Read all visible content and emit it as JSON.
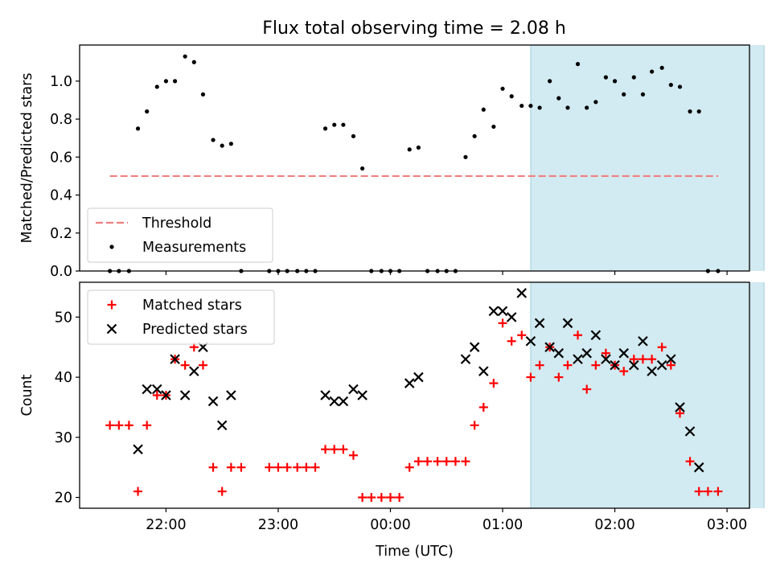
{
  "title": "Flux total observing time = 2.08 h",
  "chart_data": [
    {
      "type": "scatter",
      "panel": "top",
      "ylabel": "Matched/Predicted stars",
      "xlabel": "",
      "x_unit": "hours UTC (negative = before 00:00)",
      "xlim": [
        -2.77,
        3.2
      ],
      "ylim": [
        0.0,
        1.19
      ],
      "yticks": [
        0.0,
        0.2,
        0.4,
        0.6,
        0.8,
        1.0
      ],
      "yticklabels": [
        "0.0",
        "0.2",
        "0.4",
        "0.6",
        "0.8",
        "1.0"
      ],
      "xticks": [
        -2,
        -1,
        0,
        1,
        2,
        3
      ],
      "shaded_span": [
        1.25,
        3.33
      ],
      "shade_color": "#add8e6",
      "legend_position": "lower-left",
      "series": [
        {
          "name": "Threshold",
          "style": "dashed-line",
          "color": "#f08080",
          "x": [
            -2.5,
            2.92
          ],
          "y": [
            0.5,
            0.5
          ]
        },
        {
          "name": "Measurements",
          "style": "dot",
          "color": "#000000",
          "points": [
            [
              -2.5,
              0.0
            ],
            [
              -2.42,
              0.0
            ],
            [
              -2.33,
              0.0
            ],
            [
              -2.25,
              0.75
            ],
            [
              -2.17,
              0.84
            ],
            [
              -2.08,
              0.97
            ],
            [
              -2.0,
              1.0
            ],
            [
              -1.92,
              1.0
            ],
            [
              -1.83,
              1.13
            ],
            [
              -1.75,
              1.1
            ],
            [
              -1.67,
              0.93
            ],
            [
              -1.58,
              0.69
            ],
            [
              -1.5,
              0.66
            ],
            [
              -1.42,
              0.67
            ],
            [
              -1.33,
              0.0
            ],
            [
              -1.08,
              0.0
            ],
            [
              -1.0,
              0.0
            ],
            [
              -0.92,
              0.0
            ],
            [
              -0.83,
              0.0
            ],
            [
              -0.75,
              0.0
            ],
            [
              -0.67,
              0.0
            ],
            [
              -0.58,
              0.75
            ],
            [
              -0.5,
              0.77
            ],
            [
              -0.42,
              0.77
            ],
            [
              -0.33,
              0.71
            ],
            [
              -0.25,
              0.54
            ],
            [
              -0.17,
              0.0
            ],
            [
              -0.08,
              0.0
            ],
            [
              0.0,
              0.0
            ],
            [
              0.08,
              0.0
            ],
            [
              0.17,
              0.64
            ],
            [
              0.25,
              0.65
            ],
            [
              0.33,
              0.0
            ],
            [
              0.42,
              0.0
            ],
            [
              0.5,
              0.0
            ],
            [
              0.58,
              0.0
            ],
            [
              0.67,
              0.6
            ],
            [
              0.75,
              0.71
            ],
            [
              0.83,
              0.85
            ],
            [
              0.92,
              0.76
            ],
            [
              1.0,
              0.96
            ],
            [
              1.08,
              0.92
            ],
            [
              1.17,
              0.87
            ],
            [
              1.25,
              0.87
            ],
            [
              1.33,
              0.86
            ],
            [
              1.42,
              1.0
            ],
            [
              1.5,
              0.91
            ],
            [
              1.58,
              0.86
            ],
            [
              1.67,
              1.09
            ],
            [
              1.75,
              0.86
            ],
            [
              1.83,
              0.89
            ],
            [
              1.92,
              1.02
            ],
            [
              2.0,
              1.0
            ],
            [
              2.08,
              0.93
            ],
            [
              2.17,
              1.02
            ],
            [
              2.25,
              0.93
            ],
            [
              2.33,
              1.05
            ],
            [
              2.42,
              1.07
            ],
            [
              2.5,
              0.98
            ],
            [
              2.58,
              0.97
            ],
            [
              2.67,
              0.84
            ],
            [
              2.75,
              0.84
            ],
            [
              2.83,
              0.0
            ],
            [
              2.92,
              0.0
            ]
          ]
        }
      ]
    },
    {
      "type": "scatter",
      "panel": "bottom",
      "ylabel": "Count",
      "xlabel": "Time (UTC)",
      "x_unit": "hours UTC (negative = before 00:00)",
      "xlim": [
        -2.77,
        3.2
      ],
      "ylim": [
        18.2,
        55.8
      ],
      "yticks": [
        20,
        30,
        40,
        50
      ],
      "xticks": [
        -2,
        -1,
        0,
        1,
        2,
        3
      ],
      "xticklabels": [
        "22:00",
        "23:00",
        "00:00",
        "01:00",
        "02:00",
        "03:00"
      ],
      "shaded_span": [
        1.25,
        3.33
      ],
      "shade_color": "#add8e6",
      "legend_position": "upper-left",
      "series": [
        {
          "name": "Matched stars",
          "style": "plus",
          "color": "#ff0000",
          "points": [
            [
              -2.5,
              32
            ],
            [
              -2.42,
              32
            ],
            [
              -2.33,
              32
            ],
            [
              -2.25,
              21
            ],
            [
              -2.17,
              32
            ],
            [
              -2.08,
              37
            ],
            [
              -2.0,
              37
            ],
            [
              -1.92,
              43
            ],
            [
              -1.83,
              42
            ],
            [
              -1.75,
              45
            ],
            [
              -1.67,
              42
            ],
            [
              -1.58,
              25
            ],
            [
              -1.5,
              21
            ],
            [
              -1.42,
              25
            ],
            [
              -1.33,
              25
            ],
            [
              -1.08,
              25
            ],
            [
              -1.0,
              25
            ],
            [
              -0.92,
              25
            ],
            [
              -0.83,
              25
            ],
            [
              -0.75,
              25
            ],
            [
              -0.67,
              25
            ],
            [
              -0.58,
              28
            ],
            [
              -0.5,
              28
            ],
            [
              -0.42,
              28
            ],
            [
              -0.33,
              27
            ],
            [
              -0.25,
              20
            ],
            [
              -0.17,
              20
            ],
            [
              -0.08,
              20
            ],
            [
              0.0,
              20
            ],
            [
              0.08,
              20
            ],
            [
              0.17,
              25
            ],
            [
              0.25,
              26
            ],
            [
              0.33,
              26
            ],
            [
              0.42,
              26
            ],
            [
              0.5,
              26
            ],
            [
              0.58,
              26
            ],
            [
              0.67,
              26
            ],
            [
              0.75,
              32
            ],
            [
              0.83,
              35
            ],
            [
              0.92,
              39
            ],
            [
              1.0,
              49
            ],
            [
              1.08,
              46
            ],
            [
              1.17,
              47
            ],
            [
              1.25,
              40
            ],
            [
              1.33,
              42
            ],
            [
              1.42,
              45
            ],
            [
              1.5,
              40
            ],
            [
              1.58,
              42
            ],
            [
              1.67,
              47
            ],
            [
              1.75,
              38
            ],
            [
              1.83,
              42
            ],
            [
              1.92,
              44
            ],
            [
              2.0,
              42
            ],
            [
              2.08,
              41
            ],
            [
              2.17,
              43
            ],
            [
              2.25,
              43
            ],
            [
              2.33,
              43
            ],
            [
              2.42,
              45
            ],
            [
              2.5,
              42
            ],
            [
              2.58,
              34
            ],
            [
              2.67,
              26
            ],
            [
              2.75,
              21
            ],
            [
              2.83,
              21
            ],
            [
              2.92,
              21
            ]
          ]
        },
        {
          "name": "Predicted stars",
          "style": "cross",
          "color": "#000000",
          "points": [
            [
              -2.25,
              28
            ],
            [
              -2.17,
              38
            ],
            [
              -2.08,
              38
            ],
            [
              -2.0,
              37
            ],
            [
              -1.92,
              43
            ],
            [
              -1.83,
              37
            ],
            [
              -1.75,
              41
            ],
            [
              -1.67,
              45
            ],
            [
              -1.58,
              36
            ],
            [
              -1.5,
              32
            ],
            [
              -1.42,
              37
            ],
            [
              -0.58,
              37
            ],
            [
              -0.5,
              36
            ],
            [
              -0.42,
              36
            ],
            [
              -0.33,
              38
            ],
            [
              -0.25,
              37
            ],
            [
              0.17,
              39
            ],
            [
              0.25,
              40
            ],
            [
              0.67,
              43
            ],
            [
              0.75,
              45
            ],
            [
              0.83,
              41
            ],
            [
              0.92,
              51
            ],
            [
              1.0,
              51
            ],
            [
              1.08,
              50
            ],
            [
              1.17,
              54
            ],
            [
              1.25,
              46
            ],
            [
              1.33,
              49
            ],
            [
              1.42,
              45
            ],
            [
              1.5,
              44
            ],
            [
              1.58,
              49
            ],
            [
              1.67,
              43
            ],
            [
              1.75,
              44
            ],
            [
              1.83,
              47
            ],
            [
              1.92,
              43
            ],
            [
              2.0,
              42
            ],
            [
              2.08,
              44
            ],
            [
              2.17,
              42
            ],
            [
              2.25,
              46
            ],
            [
              2.33,
              41
            ],
            [
              2.42,
              42
            ],
            [
              2.5,
              43
            ],
            [
              2.58,
              35
            ],
            [
              2.67,
              31
            ],
            [
              2.75,
              25
            ]
          ]
        }
      ]
    }
  ]
}
